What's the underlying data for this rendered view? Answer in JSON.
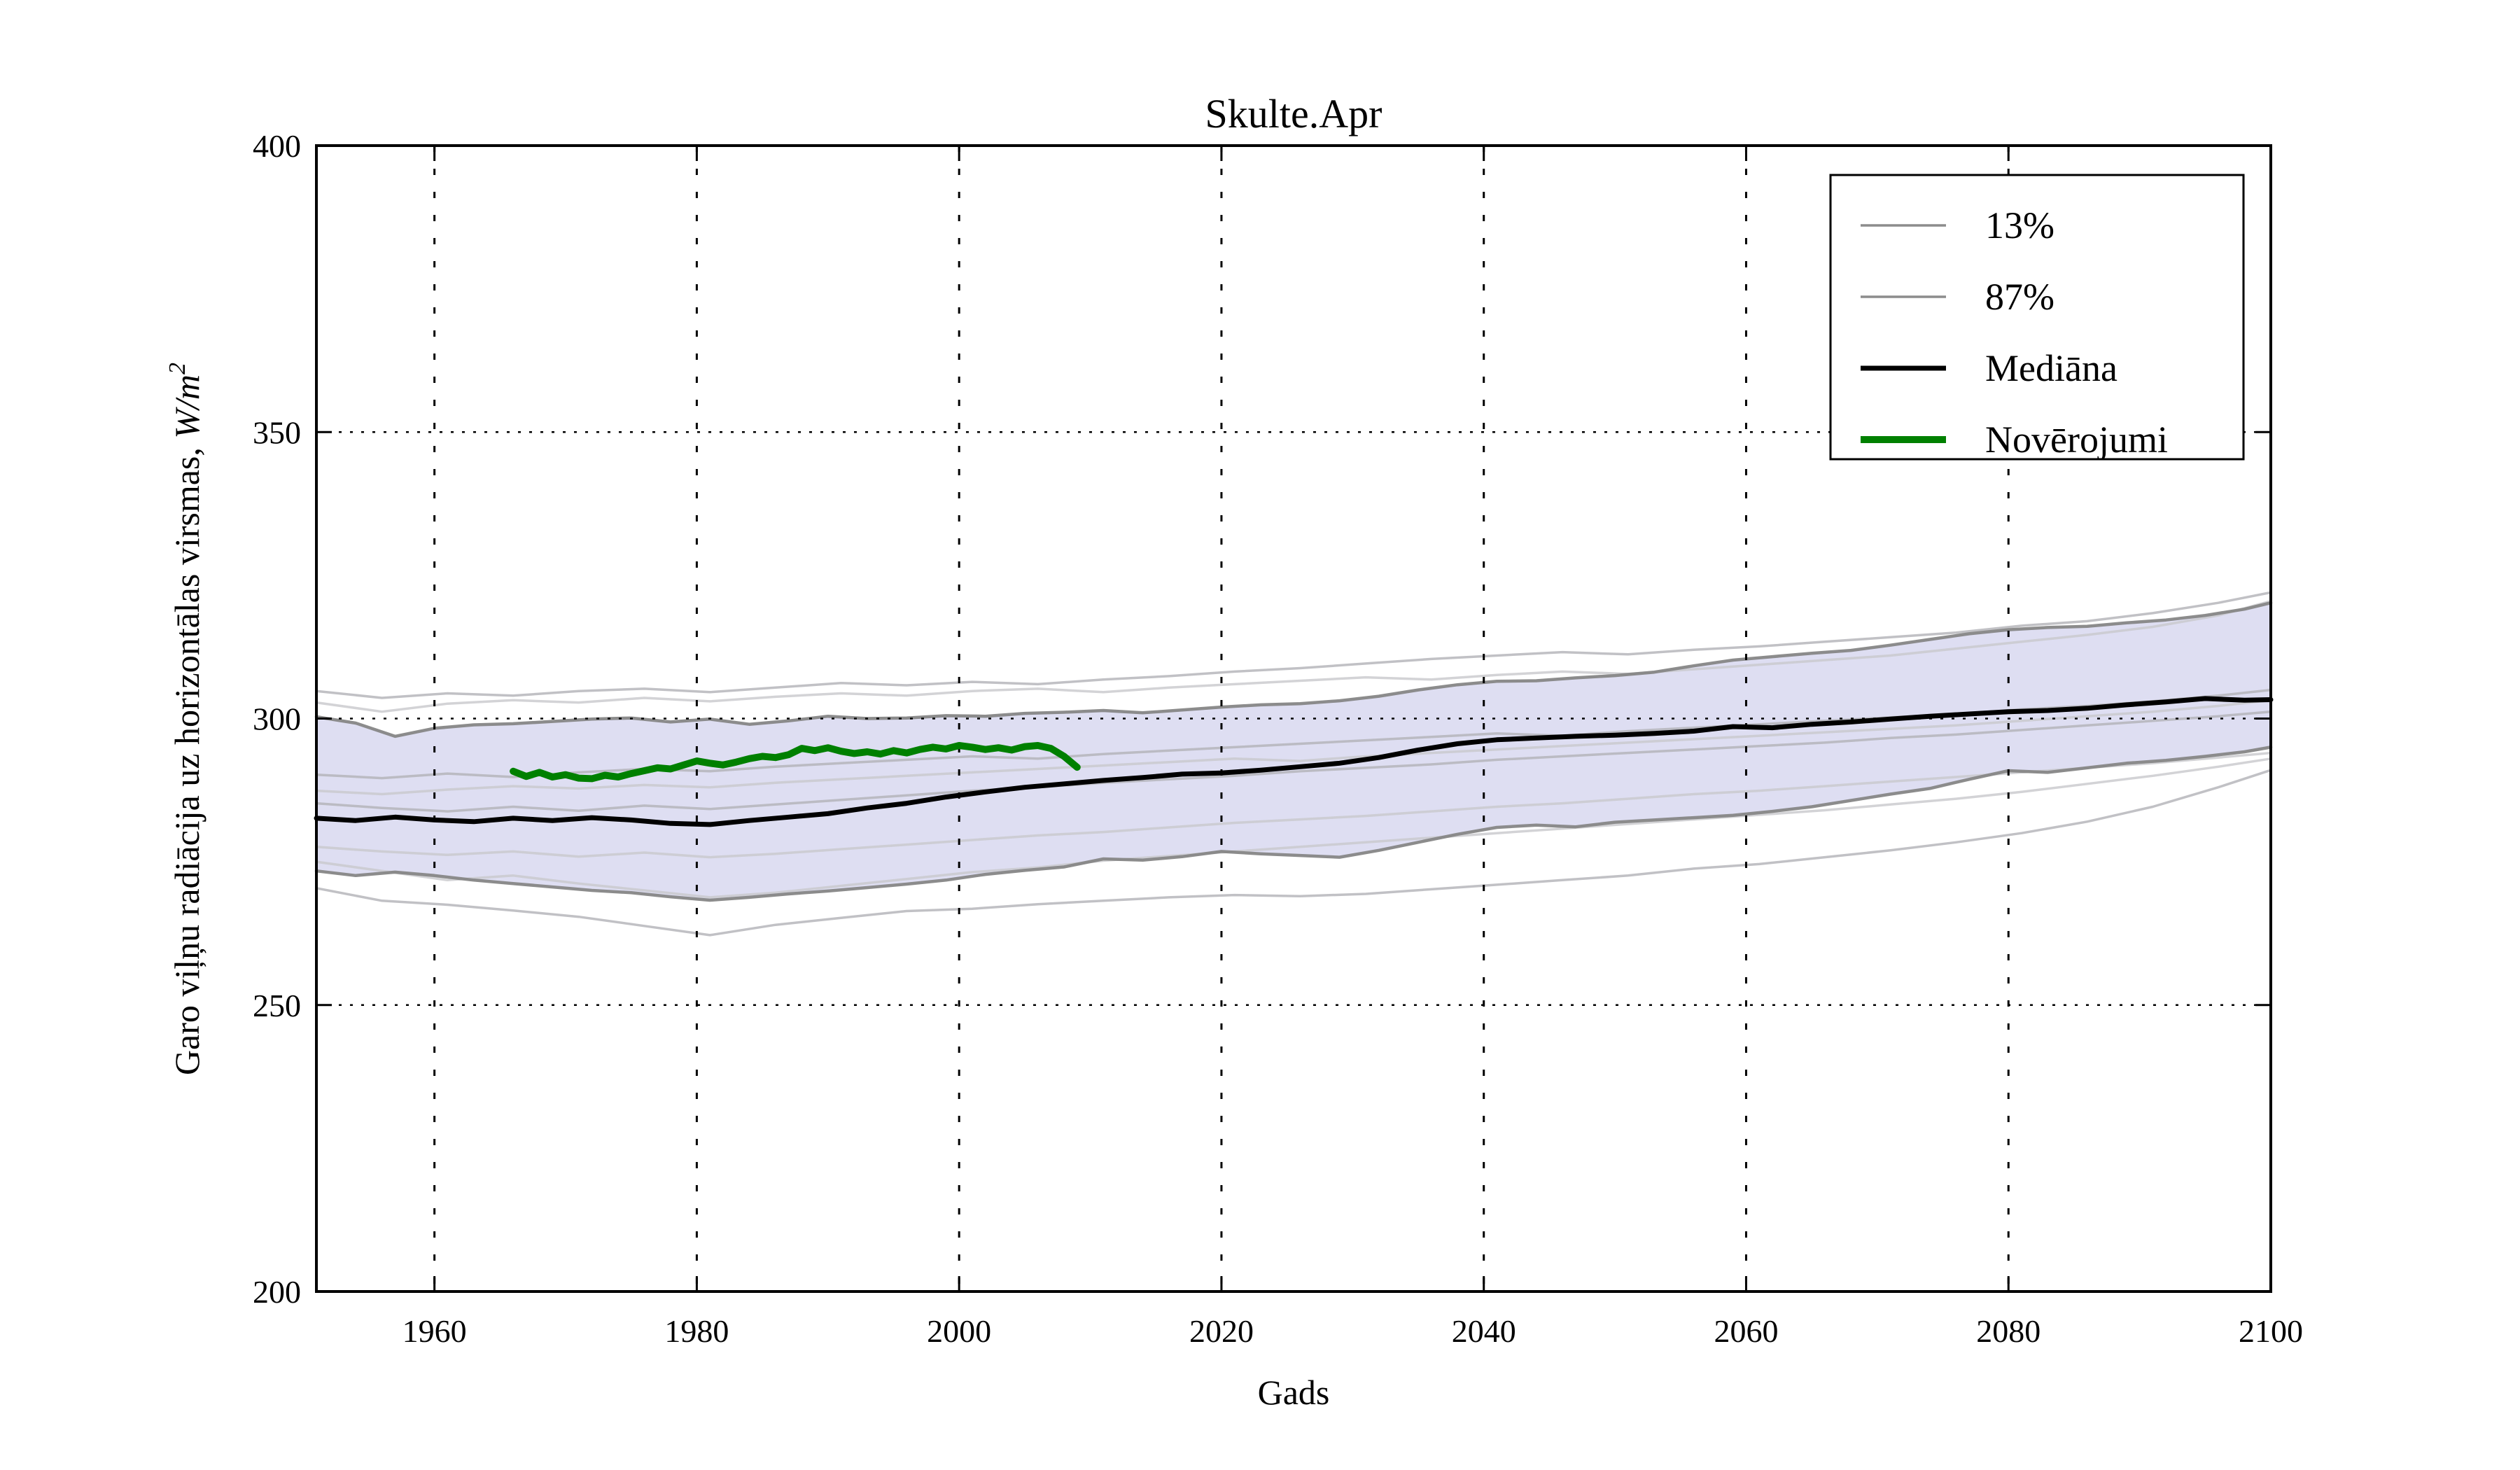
{
  "chart_data": {
    "type": "line",
    "title": "Skulte.Apr",
    "xlabel": "Gads",
    "ylabel_text": "Garo viļņu radiācija uz horizontālas virsmas, ",
    "ylabel_math": "W/m",
    "ylabel_sup": "2",
    "xlim": [
      1951,
      2100
    ],
    "ylim": [
      200,
      400
    ],
    "xticks": [
      1960,
      1980,
      2000,
      2020,
      2040,
      2060,
      2080,
      2100
    ],
    "yticks": [
      200,
      250,
      300,
      350,
      400
    ],
    "grid": true,
    "grid_style": "dotted",
    "legend_position": "upper right",
    "background": "#ffffff",
    "band": {
      "fill": "#dedef2",
      "edge": "#868686"
    },
    "legend_items": [
      {
        "label": "13%",
        "color": "#8c8c8c",
        "lw": 3.5
      },
      {
        "label": "87%",
        "color": "#8c8c8c",
        "lw": 3.5
      },
      {
        "label": "Mediāna",
        "color": "#000000",
        "lw": 7
      },
      {
        "label": "Novērojumi",
        "color": "#008000",
        "lw": 10
      }
    ],
    "series": [
      {
        "name": "13%",
        "role": "p13",
        "color": "#868686",
        "width": 4.5,
        "opacity": 0.95,
        "x_start": 1951,
        "x_step": 3,
        "values": [
          273.4,
          272.6,
          273.2,
          272.6,
          271.8,
          271.2,
          270.6,
          270.0,
          269.6,
          268.9,
          268.3,
          268.8,
          269.4,
          269.9,
          270.5,
          271.1,
          271.8,
          272.8,
          273.5,
          274.1,
          275.5,
          275.3,
          275.9,
          276.8,
          276.4,
          276.1,
          275.8,
          277.0,
          278.4,
          279.8,
          281.0,
          281.4,
          281.1,
          281.9,
          282.3,
          282.7,
          283.1,
          283.8,
          284.6,
          285.7,
          286.8,
          287.8,
          289.4,
          290.9,
          290.6,
          291.4,
          292.2,
          292.7,
          293.4,
          294.2,
          295.0
        ]
      },
      {
        "name": "87%",
        "role": "p87",
        "color": "#868686",
        "width": 4.5,
        "opacity": 0.95,
        "x_start": 1951,
        "x_step": 3,
        "values": [
          300.3,
          299.2,
          296.9,
          298.3,
          298.9,
          299.1,
          299.5,
          299.9,
          300.1,
          299.4,
          299.9,
          299.0,
          299.6,
          300.4,
          300.0,
          300.1,
          300.5,
          300.4,
          300.9,
          301.1,
          301.4,
          301.0,
          301.5,
          302.0,
          302.4,
          302.6,
          303.1,
          303.9,
          305.0,
          305.9,
          306.5,
          306.6,
          307.1,
          307.5,
          308.1,
          309.2,
          310.2,
          310.8,
          311.4,
          311.9,
          312.8,
          313.8,
          314.8,
          315.5,
          315.9,
          316.1,
          316.7,
          317.2,
          318.0,
          319.1,
          320.2
        ]
      },
      {
        "name": "Mediāna",
        "role": "median",
        "color": "#000000",
        "width": 7,
        "opacity": 1,
        "x_start": 1951,
        "x_step": 3,
        "values": [
          282.6,
          282.2,
          282.8,
          282.3,
          282.0,
          282.6,
          282.2,
          282.7,
          282.3,
          281.7,
          281.5,
          282.2,
          282.8,
          283.4,
          284.4,
          285.2,
          286.3,
          287.2,
          288.0,
          288.6,
          289.2,
          289.7,
          290.3,
          290.5,
          291.0,
          291.6,
          292.2,
          293.2,
          294.5,
          295.6,
          296.3,
          296.6,
          296.9,
          297.1,
          297.4,
          297.8,
          298.6,
          298.4,
          299.0,
          299.4,
          299.9,
          300.4,
          300.8,
          301.2,
          301.4,
          301.8,
          302.4,
          302.9,
          303.5,
          303.2,
          303.3
        ]
      },
      {
        "name": "Novērojumi",
        "role": "observations",
        "color": "#008000",
        "width": 10,
        "opacity": 1,
        "x_start": 1966,
        "x_step": 1,
        "values": [
          290.8,
          289.9,
          290.6,
          289.8,
          290.2,
          289.6,
          289.5,
          290.1,
          289.8,
          290.4,
          290.9,
          291.4,
          291.2,
          291.9,
          292.6,
          292.2,
          291.9,
          292.4,
          293.0,
          293.4,
          293.2,
          293.7,
          294.8,
          294.4,
          294.9,
          294.3,
          293.9,
          294.2,
          293.8,
          294.4,
          294.0,
          294.6,
          295.0,
          294.7,
          295.3,
          295.0,
          294.6,
          294.9,
          294.5,
          295.1,
          295.3,
          294.8,
          293.4,
          291.5
        ]
      }
    ],
    "ensemble": {
      "note": "individual climate model runs, thin light gray",
      "color": "#b2b2b6",
      "color_alt": "#c8c8cc",
      "width": 3.5,
      "opacity": 0.8,
      "x_start": 1951,
      "x_step": 5,
      "members": [
        [
          304.8,
          303.6,
          304.4,
          304.0,
          304.8,
          305.2,
          304.6,
          305.4,
          306.2,
          305.8,
          306.4,
          306.0,
          306.8,
          307.4,
          308.2,
          308.8,
          309.6,
          310.4,
          311.0,
          311.6,
          311.2,
          312.0,
          312.6,
          313.4,
          314.2,
          315.0,
          316.2,
          317.0,
          318.4,
          320.2,
          322.0
        ],
        [
          302.8,
          301.2,
          302.6,
          303.2,
          302.8,
          303.6,
          303.0,
          303.8,
          304.4,
          304.0,
          304.8,
          305.2,
          304.6,
          305.4,
          306.0,
          306.6,
          307.2,
          306.8,
          307.6,
          308.2,
          307.8,
          308.6,
          309.4,
          310.2,
          311.0,
          312.2,
          313.4,
          314.6,
          316.0,
          318.0,
          320.5
        ],
        [
          290.2,
          289.6,
          290.4,
          289.8,
          290.6,
          291.2,
          290.8,
          291.6,
          292.2,
          292.8,
          293.4,
          293.0,
          293.8,
          294.4,
          295.0,
          295.6,
          296.2,
          296.8,
          297.4,
          297.0,
          297.8,
          298.4,
          299.0,
          299.6,
          300.2,
          300.8,
          301.6,
          302.2,
          303.0,
          304.0,
          305.0
        ],
        [
          287.4,
          286.8,
          287.6,
          288.2,
          287.8,
          288.4,
          288.0,
          288.8,
          289.4,
          290.0,
          290.6,
          291.2,
          291.8,
          292.4,
          293.0,
          292.6,
          293.4,
          294.0,
          294.6,
          295.2,
          295.8,
          296.4,
          297.0,
          297.6,
          298.2,
          298.8,
          299.6,
          300.4,
          301.2,
          302.2,
          303.2
        ],
        [
          285.2,
          284.4,
          283.8,
          284.6,
          283.9,
          284.8,
          284.2,
          285.0,
          285.8,
          286.6,
          287.4,
          288.0,
          288.8,
          289.4,
          290.0,
          290.8,
          291.4,
          292.0,
          292.8,
          293.4,
          294.0,
          294.6,
          295.2,
          295.8,
          296.6,
          297.2,
          298.0,
          298.8,
          299.6,
          300.4,
          301.2
        ],
        [
          277.6,
          276.8,
          276.2,
          276.8,
          275.9,
          276.6,
          275.8,
          276.4,
          277.2,
          278.0,
          278.8,
          279.6,
          280.2,
          281.0,
          281.8,
          282.4,
          283.0,
          283.8,
          284.6,
          285.2,
          286.0,
          286.8,
          287.4,
          288.2,
          289.0,
          289.8,
          290.6,
          291.4,
          292.2,
          293.2,
          294.0
        ],
        [
          270.4,
          268.2,
          267.5,
          266.5,
          265.4,
          263.8,
          262.2,
          264.0,
          265.2,
          266.4,
          266.8,
          267.6,
          268.2,
          268.8,
          269.2,
          269.0,
          269.4,
          270.2,
          271.0,
          271.8,
          272.6,
          273.8,
          274.6,
          275.8,
          277.0,
          278.4,
          280.0,
          282.0,
          284.6,
          288.0,
          291.0
        ],
        [
          275.0,
          273.4,
          271.8,
          272.6,
          271.2,
          270.0,
          268.8,
          269.6,
          270.8,
          272.0,
          273.2,
          274.0,
          275.2,
          276.0,
          276.8,
          277.6,
          278.4,
          279.2,
          280.0,
          280.8,
          281.6,
          282.4,
          283.2,
          284.0,
          285.0,
          286.0,
          287.2,
          288.6,
          290.0,
          291.6,
          293.0
        ]
      ]
    }
  }
}
